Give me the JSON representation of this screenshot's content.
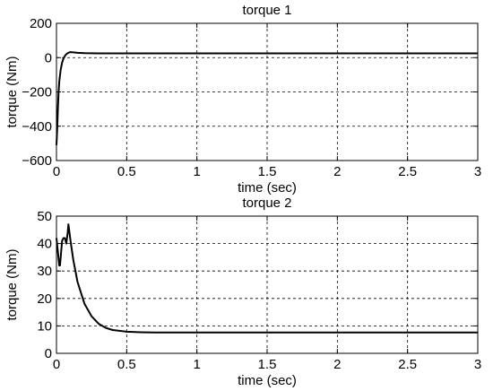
{
  "chart_data": [
    {
      "type": "line",
      "title": "torque 1",
      "xlabel": "time (sec)",
      "ylabel": "torque (Nm)",
      "xlim": [
        0,
        3
      ],
      "ylim": [
        -600,
        200
      ],
      "xticks": [
        0,
        0.5,
        1,
        1.5,
        2,
        2.5,
        3
      ],
      "xtick_labels": [
        "0",
        "0.5",
        "1",
        "1.5",
        "2",
        "2.5",
        "3"
      ],
      "yticks": [
        -600,
        -400,
        -200,
        0,
        200
      ],
      "ytick_labels": [
        "−600",
        "−400",
        "−200",
        "0",
        "200"
      ],
      "grid": true,
      "series": [
        {
          "x": [
            0,
            0.005,
            0.01,
            0.015,
            0.02,
            0.03,
            0.04,
            0.05,
            0.06,
            0.07,
            0.08,
            0.09,
            0.1,
            0.12,
            0.15,
            0.2,
            0.3,
            0.5,
            1,
            2,
            3
          ],
          "y": [
            -510,
            -420,
            -300,
            -200,
            -140,
            -70,
            -30,
            -5,
            10,
            20,
            26,
            30,
            32,
            31,
            28,
            26,
            25,
            25,
            25,
            25,
            25
          ]
        }
      ]
    },
    {
      "type": "line",
      "title": "torque 2",
      "xlabel": "time (sec)",
      "ylabel": "torque (Nm)",
      "xlim": [
        0,
        3
      ],
      "ylim": [
        0,
        50
      ],
      "xticks": [
        0,
        0.5,
        1,
        1.5,
        2,
        2.5,
        3
      ],
      "xtick_labels": [
        "0",
        "0.5",
        "1",
        "1.5",
        "2",
        "2.5",
        "3"
      ],
      "yticks": [
        0,
        10,
        20,
        30,
        40,
        50
      ],
      "ytick_labels": [
        "0",
        "10",
        "20",
        "30",
        "40",
        "50"
      ],
      "grid": true,
      "series": [
        {
          "x": [
            0,
            0.01,
            0.02,
            0.025,
            0.03,
            0.04,
            0.05,
            0.06,
            0.07,
            0.08,
            0.085,
            0.09,
            0.1,
            0.12,
            0.15,
            0.2,
            0.25,
            0.3,
            0.35,
            0.4,
            0.5,
            0.6,
            0.7,
            1,
            2,
            3
          ],
          "y": [
            42,
            37,
            32,
            32,
            35,
            41,
            42,
            42,
            40,
            44,
            47,
            45,
            41,
            34,
            26,
            18,
            13.5,
            10.8,
            9.3,
            8.5,
            7.9,
            7.7,
            7.6,
            7.6,
            7.6,
            7.6
          ]
        }
      ]
    }
  ]
}
